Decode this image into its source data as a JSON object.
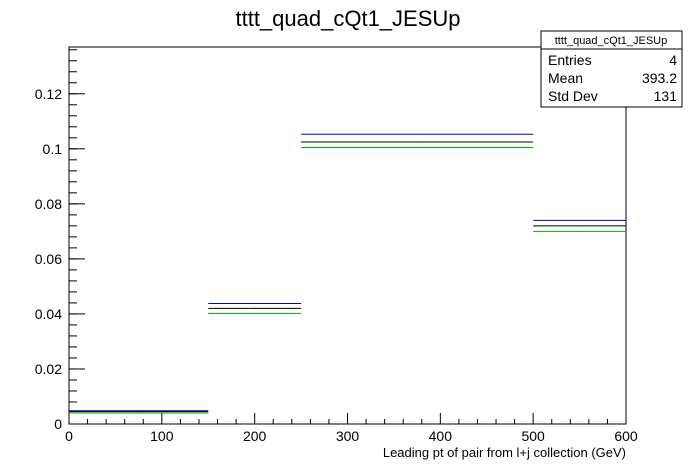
{
  "chart_data": {
    "type": "bar",
    "title": "tttt_quad_cQt1_JESUp",
    "xlabel": "Leading pt of pair from l+j collection (GeV)",
    "ylabel": "",
    "xlim": [
      0,
      600
    ],
    "ylim": [
      0,
      0.137
    ],
    "x_ticks": [
      "0",
      "100",
      "200",
      "300",
      "400",
      "500",
      "600"
    ],
    "y_ticks": [
      "0",
      "0.02",
      "0.04",
      "0.06",
      "0.08",
      "0.1",
      "0.12"
    ],
    "bins": [
      {
        "x_low": 0,
        "x_high": 150,
        "value": 0.0045
      },
      {
        "x_low": 150,
        "x_high": 250,
        "value": 0.042
      },
      {
        "x_low": 250,
        "x_high": 500,
        "value": 0.1025
      },
      {
        "x_low": 500,
        "x_high": 600,
        "value": 0.072
      }
    ],
    "bands": [
      {
        "color": "#0000cc",
        "values": [
          0.0048,
          0.0438,
          0.1053,
          0.074
        ]
      },
      {
        "color": "#000000",
        "values": [
          0.0045,
          0.042,
          0.1025,
          0.072
        ]
      },
      {
        "color": "#00aa00",
        "values": [
          0.004,
          0.0402,
          0.1005,
          0.07
        ]
      }
    ],
    "grid": false,
    "legend": "none",
    "stats": {
      "name": "tttt_quad_cQt1_JESUp",
      "rows": [
        {
          "label": "Entries",
          "value": "4"
        },
        {
          "label": "Mean",
          "value": "393.2"
        },
        {
          "label": "Std Dev",
          "value": "131"
        }
      ]
    }
  }
}
